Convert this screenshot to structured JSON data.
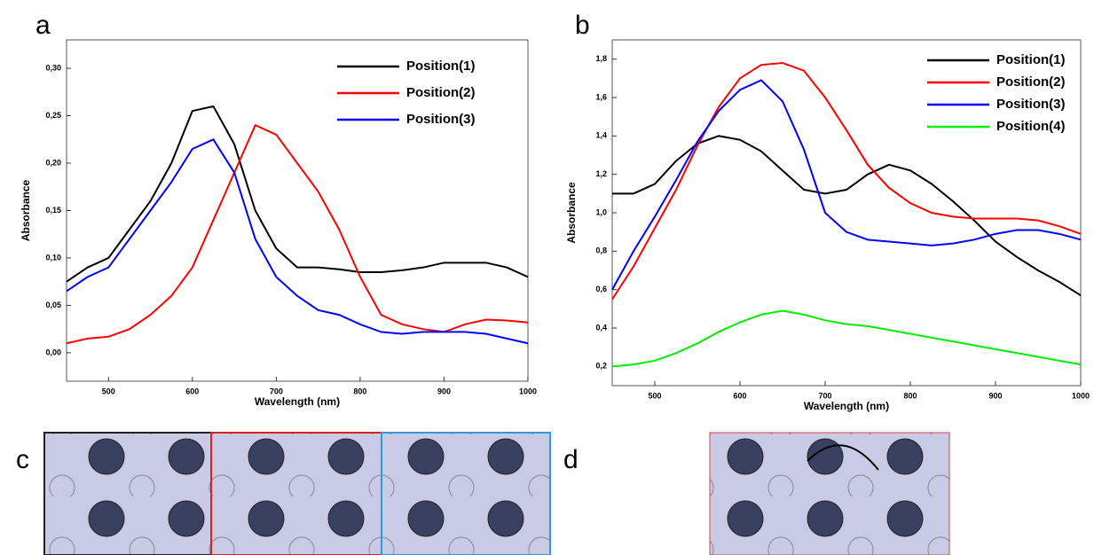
{
  "chart_data": [
    {
      "type": "line",
      "panel_label": "a",
      "x_label": "Wavelength (nm)",
      "y_label": "Absorbance",
      "x": [
        450,
        475,
        500,
        525,
        550,
        575,
        600,
        625,
        650,
        675,
        700,
        725,
        750,
        775,
        800,
        825,
        850,
        875,
        900,
        925,
        950,
        975,
        1000
      ],
      "xlim": [
        450,
        1000
      ],
      "xticks": [
        500,
        600,
        700,
        800,
        900,
        1000
      ],
      "ylim": [
        -0.03,
        0.33
      ],
      "yticks": [
        {
          "value": 0,
          "label": "0,00"
        },
        {
          "value": 0.05,
          "label": "0,05"
        },
        {
          "value": 0.1,
          "label": "0,10"
        },
        {
          "value": 0.15,
          "label": "0,15"
        },
        {
          "value": 0.2,
          "label": "0,20"
        },
        {
          "value": 0.25,
          "label": "0,25"
        },
        {
          "value": 0.3,
          "label": "0,30"
        }
      ],
      "series": [
        {
          "name": "Position(1)",
          "color": "#000000",
          "values": [
            0.075,
            0.09,
            0.1,
            0.13,
            0.16,
            0.2,
            0.255,
            0.26,
            0.22,
            0.15,
            0.11,
            0.09,
            0.09,
            0.088,
            0.085,
            0.085,
            0.087,
            0.09,
            0.095,
            0.095,
            0.095,
            0.09,
            0.08
          ]
        },
        {
          "name": "Position(2)",
          "color": "#ff0000",
          "values": [
            0.01,
            0.015,
            0.017,
            0.025,
            0.04,
            0.06,
            0.09,
            0.14,
            0.19,
            0.24,
            0.23,
            0.2,
            0.17,
            0.13,
            0.08,
            0.04,
            0.03,
            0.025,
            0.022,
            0.03,
            0.035,
            0.034,
            0.032
          ]
        },
        {
          "name": "Position(3)",
          "color": "#0000ff",
          "values": [
            0.065,
            0.08,
            0.09,
            0.12,
            0.15,
            0.18,
            0.215,
            0.225,
            0.19,
            0.12,
            0.08,
            0.06,
            0.045,
            0.04,
            0.03,
            0.022,
            0.02,
            0.022,
            0.022,
            0.022,
            0.02,
            0.015,
            0.01
          ]
        }
      ]
    },
    {
      "type": "line",
      "panel_label": "b",
      "x_label": "Wavelength (nm)",
      "y_label": "Absorbance",
      "x": [
        450,
        475,
        500,
        525,
        550,
        575,
        600,
        625,
        650,
        675,
        700,
        725,
        750,
        775,
        800,
        825,
        850,
        875,
        900,
        925,
        950,
        975,
        1000
      ],
      "xlim": [
        450,
        1000
      ],
      "xticks": [
        500,
        600,
        700,
        800,
        900,
        1000
      ],
      "ylim": [
        0.1,
        1.9
      ],
      "yticks": [
        {
          "value": 0.2,
          "label": "0,2"
        },
        {
          "value": 0.4,
          "label": "0,4"
        },
        {
          "value": 0.6,
          "label": "0,6"
        },
        {
          "value": 0.8,
          "label": "0,8"
        },
        {
          "value": 1.0,
          "label": "1,0"
        },
        {
          "value": 1.2,
          "label": "1,2"
        },
        {
          "value": 1.4,
          "label": "1,4"
        },
        {
          "value": 1.6,
          "label": "1,6"
        },
        {
          "value": 1.8,
          "label": "1,8"
        }
      ],
      "series": [
        {
          "name": "Position(1)",
          "color": "#000000",
          "values": [
            1.1,
            1.1,
            1.15,
            1.27,
            1.36,
            1.4,
            1.38,
            1.32,
            1.22,
            1.12,
            1.1,
            1.12,
            1.2,
            1.25,
            1.22,
            1.15,
            1.06,
            0.96,
            0.85,
            0.77,
            0.7,
            0.64,
            0.57
          ]
        },
        {
          "name": "Position(2)",
          "color": "#ff0000",
          "values": [
            0.55,
            0.72,
            0.92,
            1.12,
            1.35,
            1.55,
            1.7,
            1.77,
            1.78,
            1.74,
            1.6,
            1.43,
            1.25,
            1.13,
            1.05,
            1.0,
            0.98,
            0.97,
            0.97,
            0.97,
            0.96,
            0.93,
            0.89
          ]
        },
        {
          "name": "Position(3)",
          "color": "#0000ff",
          "values": [
            0.6,
            0.8,
            0.98,
            1.17,
            1.37,
            1.53,
            1.64,
            1.69,
            1.58,
            1.33,
            1.0,
            0.9,
            0.86,
            0.85,
            0.84,
            0.83,
            0.84,
            0.86,
            0.89,
            0.91,
            0.91,
            0.89,
            0.86
          ]
        },
        {
          "name": "Position(4)",
          "color": "#00ee00",
          "values": [
            0.2,
            0.21,
            0.23,
            0.27,
            0.32,
            0.38,
            0.43,
            0.47,
            0.49,
            0.47,
            0.44,
            0.42,
            0.41,
            0.39,
            0.37,
            0.35,
            0.33,
            0.31,
            0.29,
            0.27,
            0.25,
            0.23,
            0.21
          ]
        }
      ]
    }
  ],
  "image_panels": [
    "c",
    "d"
  ]
}
